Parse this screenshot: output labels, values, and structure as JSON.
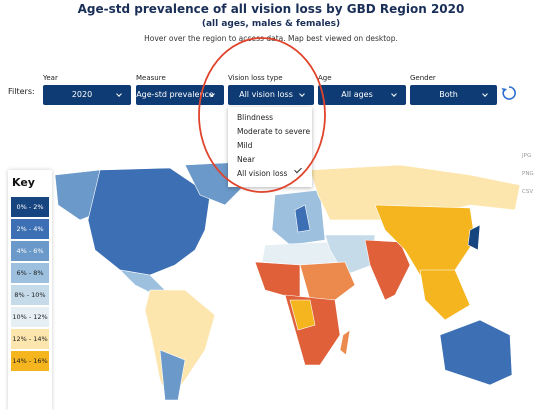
{
  "header": {
    "title": "Age-std prevalence of all vision loss by GBD Region 2020",
    "subtitle": "(all ages, males & females)",
    "instruction": "Hover over the region to access data. Map best viewed on desktop."
  },
  "filters": {
    "label": "Filters:",
    "items": [
      {
        "label": "Year",
        "value": "2020"
      },
      {
        "label": "Measure",
        "value": "Age-std prevalence"
      },
      {
        "label": "Vision loss type",
        "value": "All vision loss"
      },
      {
        "label": "Age",
        "value": "All ages"
      },
      {
        "label": "Gender",
        "value": "Both"
      }
    ]
  },
  "dropdown": {
    "options": [
      "Blindness",
      "Moderate to severe",
      "Mild",
      "Near",
      "All vision loss"
    ],
    "selected": 4
  },
  "downloads": [
    "JPG",
    "PNG",
    "CSV"
  ],
  "key": {
    "title": "Key",
    "items": [
      {
        "label": "0% - 2%",
        "color": "#17457f"
      },
      {
        "label": "2% - 4%",
        "color": "#3c6fb3"
      },
      {
        "label": "4% - 6%",
        "color": "#6b99c9"
      },
      {
        "label": "6% - 8%",
        "color": "#9cc0de"
      },
      {
        "label": "8% - 10%",
        "color": "#c5dbea"
      },
      {
        "label": "10% - 12%",
        "color": "#e6eff4"
      },
      {
        "label": "12% - 14%",
        "color": "#fde6ae"
      },
      {
        "label": "14% - 16%",
        "color": "#f5b51e"
      }
    ]
  }
}
